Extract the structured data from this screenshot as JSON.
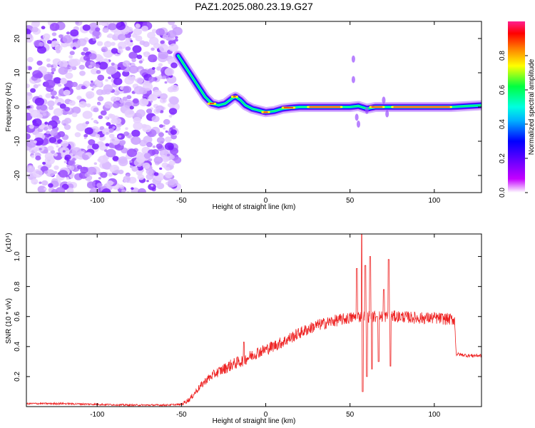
{
  "title": "PAZ1.2025.080.23.19.G27",
  "colors": {
    "snr_line": "#ee2222",
    "colormap": [
      "#ffffff",
      "#c400ff",
      "#5a00ff",
      "#0000ff",
      "#00b0ff",
      "#00ffe0",
      "#00ff40",
      "#ffff00",
      "#ff8000",
      "#ff0000",
      "#ff2090"
    ]
  },
  "chart_data": [
    {
      "type": "heatmap",
      "title": "PAZ1.2025.080.23.19.G27",
      "xlabel": "Height of straight line (km)",
      "ylabel": "Frequency (Hz)",
      "xlim": [
        -142,
        128
      ],
      "ylim": [
        -25,
        25
      ],
      "xticks": [
        -100,
        -50,
        0,
        50,
        100
      ],
      "yticks": [
        -20,
        -10,
        0,
        10,
        20
      ],
      "colorbar": {
        "label": "Normalized spectral amplitude",
        "range": [
          0,
          1
        ],
        "ticks": [
          0.0,
          0.2,
          0.4,
          0.6,
          0.8
        ]
      },
      "noise_region_x": [
        -142,
        -52
      ],
      "ridge": [
        {
          "x": -52,
          "y": 15
        },
        {
          "x": -48,
          "y": 12
        },
        {
          "x": -44,
          "y": 9
        },
        {
          "x": -40,
          "y": 6
        },
        {
          "x": -36,
          "y": 3
        },
        {
          "x": -32,
          "y": 1
        },
        {
          "x": -28,
          "y": 0.5
        },
        {
          "x": -24,
          "y": 1
        },
        {
          "x": -20,
          "y": 2.5
        },
        {
          "x": -18,
          "y": 3
        },
        {
          "x": -15,
          "y": 2
        },
        {
          "x": -12,
          "y": 0.5
        },
        {
          "x": -8,
          "y": -0.5
        },
        {
          "x": -4,
          "y": -1
        },
        {
          "x": 0,
          "y": -1.5
        },
        {
          "x": 5,
          "y": -1.2
        },
        {
          "x": 10,
          "y": -0.5
        },
        {
          "x": 15,
          "y": -0.2
        },
        {
          "x": 20,
          "y": 0
        },
        {
          "x": 30,
          "y": 0
        },
        {
          "x": 40,
          "y": 0
        },
        {
          "x": 50,
          "y": 0
        },
        {
          "x": 55,
          "y": 0.3
        },
        {
          "x": 60,
          "y": -0.5
        },
        {
          "x": 65,
          "y": 0
        },
        {
          "x": 70,
          "y": 0
        },
        {
          "x": 80,
          "y": 0
        },
        {
          "x": 90,
          "y": 0
        },
        {
          "x": 100,
          "y": 0
        },
        {
          "x": 110,
          "y": 0
        },
        {
          "x": 120,
          "y": 0.3
        },
        {
          "x": 128,
          "y": 0.5
        }
      ]
    },
    {
      "type": "line",
      "xlabel": "Height of straight line (km)",
      "ylabel": "SNR (10 * v/v)",
      "ylabel_multiplier": "(x10⁴)",
      "xlim": [
        -142,
        128
      ],
      "ylim": [
        0,
        1.15
      ],
      "xticks": [
        -100,
        -50,
        0,
        50,
        100
      ],
      "yticks": [
        0.2,
        0.4,
        0.6,
        0.8,
        1.0
      ],
      "series": [
        {
          "points": [
            {
              "x": -142,
              "y": 0.02
            },
            {
              "x": -120,
              "y": 0.02
            },
            {
              "x": -100,
              "y": 0.015
            },
            {
              "x": -80,
              "y": 0.01
            },
            {
              "x": -60,
              "y": 0.01
            },
            {
              "x": -50,
              "y": 0.015
            },
            {
              "x": -45,
              "y": 0.05
            },
            {
              "x": -40,
              "y": 0.12
            },
            {
              "x": -35,
              "y": 0.18
            },
            {
              "x": -30,
              "y": 0.22
            },
            {
              "x": -25,
              "y": 0.25
            },
            {
              "x": -20,
              "y": 0.28
            },
            {
              "x": -15,
              "y": 0.3
            },
            {
              "x": -10,
              "y": 0.33
            },
            {
              "x": -5,
              "y": 0.36
            },
            {
              "x": 0,
              "y": 0.38
            },
            {
              "x": 10,
              "y": 0.43
            },
            {
              "x": 20,
              "y": 0.49
            },
            {
              "x": 30,
              "y": 0.54
            },
            {
              "x": 40,
              "y": 0.57
            },
            {
              "x": 50,
              "y": 0.59
            },
            {
              "x": 55,
              "y": 0.6
            },
            {
              "x": 60,
              "y": 0.6
            },
            {
              "x": 70,
              "y": 0.6
            },
            {
              "x": 80,
              "y": 0.6
            },
            {
              "x": 90,
              "y": 0.59
            },
            {
              "x": 100,
              "y": 0.59
            },
            {
              "x": 112,
              "y": 0.58
            },
            {
              "x": 113,
              "y": 0.35
            },
            {
              "x": 120,
              "y": 0.34
            },
            {
              "x": 128,
              "y": 0.34
            }
          ]
        }
      ],
      "spikes": [
        {
          "x": -13,
          "y": 0.43
        },
        {
          "x": 54,
          "y": 0.92
        },
        {
          "x": 57,
          "y": 1.15
        },
        {
          "x": 57.5,
          "y": 0.1
        },
        {
          "x": 59,
          "y": 0.94
        },
        {
          "x": 60,
          "y": 0.2
        },
        {
          "x": 62,
          "y": 1.0
        },
        {
          "x": 63,
          "y": 0.25
        },
        {
          "x": 66,
          "y": 0.6
        },
        {
          "x": 67,
          "y": 0.3
        },
        {
          "x": 70,
          "y": 0.78
        },
        {
          "x": 73,
          "y": 0.98
        },
        {
          "x": 74,
          "y": 0.27
        }
      ]
    }
  ]
}
